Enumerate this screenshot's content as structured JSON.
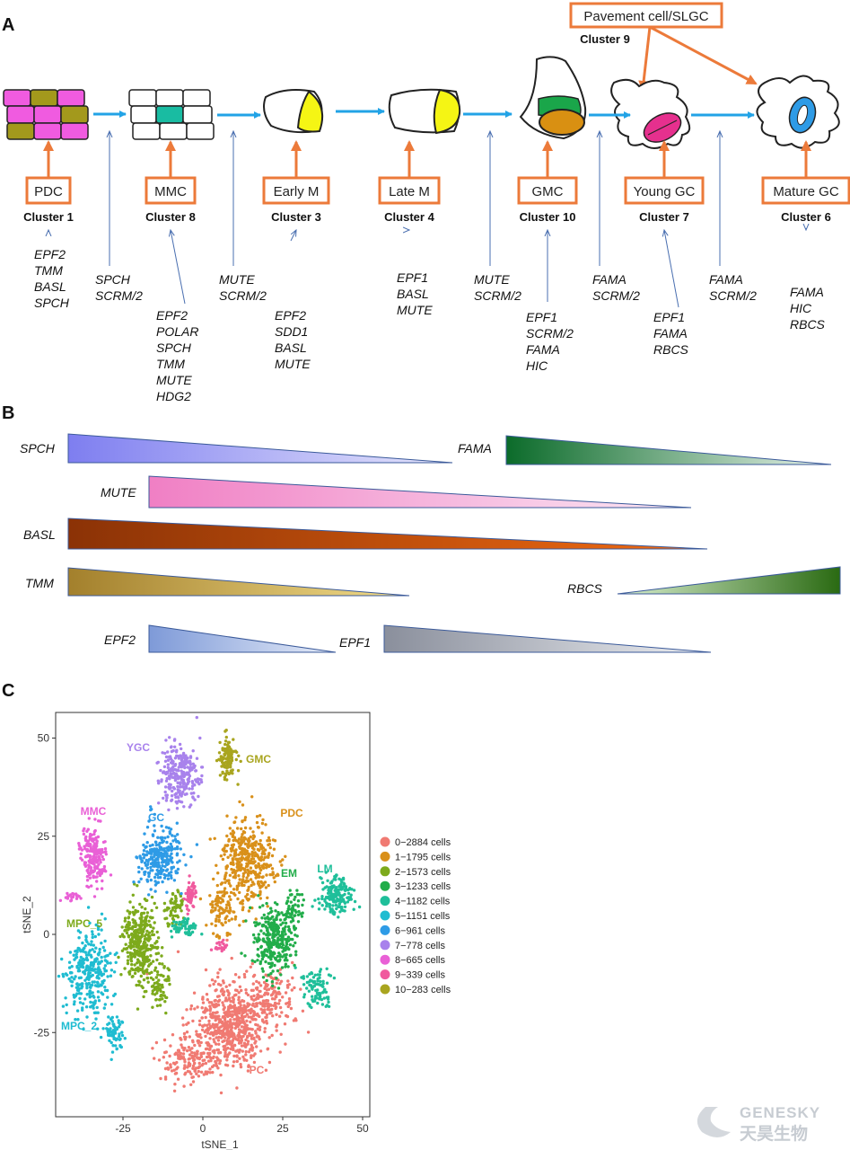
{
  "panels": [
    "A",
    "B",
    "C"
  ],
  "panelA": {
    "top_box": {
      "label": "Pavement cell/SLGC",
      "cluster": "Cluster 9"
    },
    "stages": [
      {
        "label": "PDC",
        "cluster": "Cluster 1",
        "genes": [
          "EPF2",
          "TMM",
          "BASL",
          "SPCH"
        ]
      },
      {
        "label": "MMC",
        "cluster": "Cluster 8",
        "genes": [
          "EPF2",
          "POLAR",
          "SPCH",
          "TMM",
          "MUTE",
          "HDG2"
        ]
      },
      {
        "label": "Early M",
        "cluster": "Cluster 3",
        "genes": [
          "EPF2",
          "SDD1",
          "BASL",
          "MUTE"
        ]
      },
      {
        "label": "Late M",
        "cluster": "Cluster 4",
        "genes": [
          "EPF1",
          "BASL",
          "MUTE"
        ]
      },
      {
        "label": "GMC",
        "cluster": "Cluster 10",
        "genes": [
          "EPF1",
          "SCRM/2",
          "FAMA",
          "HIC"
        ]
      },
      {
        "label": "Young GC",
        "cluster": "Cluster 7",
        "genes": [
          "EPF1",
          "FAMA",
          "RBCS"
        ]
      },
      {
        "label": "Mature GC",
        "cluster": "Cluster 6",
        "genes": [
          "FAMA",
          "HIC",
          "RBCS"
        ]
      }
    ],
    "transitions": [
      [
        "SPCH",
        "SCRM/2"
      ],
      [
        "MUTE",
        "SCRM/2"
      ],
      [
        "MUTE",
        "SCRM/2"
      ],
      [
        "FAMA",
        "SCRM/2"
      ],
      [
        "FAMA",
        "SCRM/2"
      ]
    ]
  },
  "panelB": {
    "genes": [
      "SPCH",
      "FAMA",
      "MUTE",
      "BASL",
      "TMM",
      "RBCS",
      "EPF2",
      "EPF1"
    ],
    "colors": {
      "SPCH": [
        "#7e7ef0",
        "#e6e6fb"
      ],
      "FAMA": [
        "#0b6b2a",
        "#e7f2e9"
      ],
      "MUTE": [
        "#f07fc4",
        "#fbe8f4"
      ],
      "BASL": [
        "#8b3206",
        "#f26b12"
      ],
      "TMM": [
        "#a3802c",
        "#f2dc8a"
      ],
      "RBCS": [
        "#2a6a12",
        "#d9efcf"
      ],
      "EPF2": [
        "#7e9ad8",
        "#e6ecf8"
      ],
      "EPF1": [
        "#8a8f9c",
        "#eceef2"
      ]
    }
  },
  "panelC": {
    "xlabel": "tSNE_1",
    "ylabel": "tSNE_2",
    "xticks": [
      "-25",
      "0",
      "25",
      "50"
    ],
    "yticks": [
      "50",
      "25",
      "0",
      "-25"
    ],
    "legend": [
      {
        "label": "0−2884 cells",
        "color": "#f07a72"
      },
      {
        "label": "1−1795 cells",
        "color": "#d9901a"
      },
      {
        "label": "2−1573 cells",
        "color": "#7daa1c"
      },
      {
        "label": "3−1233 cells",
        "color": "#22ad4a"
      },
      {
        "label": "4−1182 cells",
        "color": "#1fbf9a"
      },
      {
        "label": "5−1151 cells",
        "color": "#1fbcd1"
      },
      {
        "label": "6−961 cells",
        "color": "#2e9be6"
      },
      {
        "label": "7−778 cells",
        "color": "#a882ec"
      },
      {
        "label": "8−665 cells",
        "color": "#e960d6"
      },
      {
        "label": "9−339 cells",
        "color": "#f05a9e"
      },
      {
        "label": "10−283 cells",
        "color": "#a9a51f"
      }
    ],
    "cluster_labels": [
      "YGC",
      "GMC",
      "MMC",
      "GC",
      "PDC",
      "EM",
      "LM",
      "MPC_5",
      "MPC_2",
      "PC"
    ]
  },
  "watermark": {
    "line1": "GENESKY",
    "line2": "天昊生物"
  }
}
